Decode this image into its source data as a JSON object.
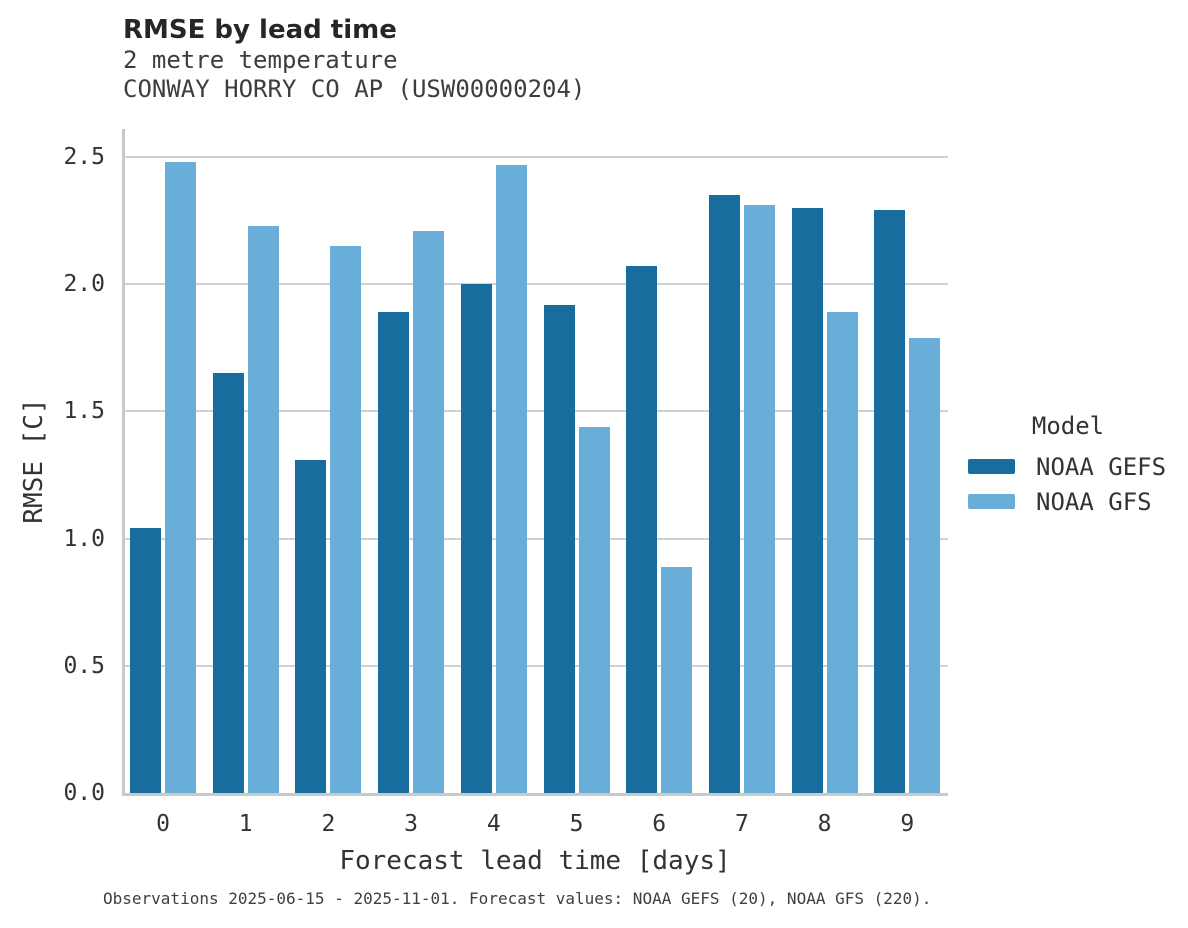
{
  "header": {
    "title": "RMSE by lead time",
    "subtitle": "2 metre temperature",
    "station": "CONWAY HORRY CO AP (USW00000204)"
  },
  "chart_data": {
    "type": "bar",
    "title": "RMSE by lead time",
    "subtitle": "2 metre temperature",
    "station": "CONWAY HORRY CO AP (USW00000204)",
    "xlabel": "Forecast lead time [days]",
    "ylabel": "RMSE [C]",
    "categories": [
      "0",
      "1",
      "2",
      "3",
      "4",
      "5",
      "6",
      "7",
      "8",
      "9"
    ],
    "series": [
      {
        "name": "NOAA GEFS",
        "color": "#176e9e",
        "values": [
          1.04,
          1.65,
          1.31,
          1.89,
          2.0,
          1.92,
          2.07,
          2.35,
          2.3,
          2.29
        ]
      },
      {
        "name": "NOAA GFS",
        "color": "#68aed8",
        "values": [
          2.48,
          2.23,
          2.15,
          2.21,
          2.47,
          1.44,
          0.89,
          2.31,
          1.89,
          1.79
        ]
      }
    ],
    "ytick_labels": [
      "0.0",
      "0.5",
      "1.0",
      "1.5",
      "2.0",
      "2.5"
    ],
    "ylim": [
      0,
      2.61
    ],
    "grid": true,
    "legend_position": "right-outside"
  },
  "legend": {
    "title": "Model",
    "items": [
      {
        "label": "NOAA GEFS",
        "color": "#176e9e"
      },
      {
        "label": "NOAA GFS",
        "color": "#68aed8"
      }
    ]
  },
  "footer": {
    "text": "Observations 2025-06-15 - 2025-11-01. Forecast values: NOAA GEFS (20), NOAA GFS (220)."
  },
  "colors": {
    "gefs": "#176e9e",
    "gfs": "#68aed8",
    "grid": "#d2d2d2",
    "spine": "#c9c9c9"
  }
}
